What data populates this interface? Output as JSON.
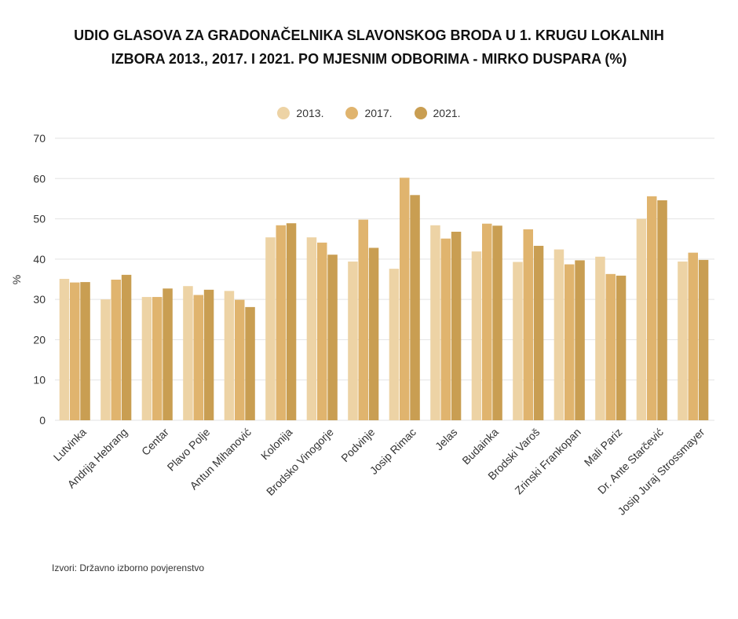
{
  "title_lines": [
    "UDIO GLASOVA ZA GRADONAČELNIKA SLAVONSKOG BRODA U 1. KRUGU LOKALNIH",
    "IZBORA 2013., 2017. I 2021. PO MJESNIM ODBORIMA - MIRKO DUSPARA (%)"
  ],
  "source": "Izvori: Državno izborno povjerenstvo",
  "colors": {
    "2013.": "#EDD3A5",
    "2017.": "#E0B46E",
    "2021.": "#C99E52",
    "grid": "#E3E3E3"
  },
  "chart_data": {
    "type": "bar",
    "ylabel": "%",
    "xlabel": "",
    "ylim": [
      0,
      70
    ],
    "yticks": [
      0,
      10,
      20,
      30,
      40,
      50,
      60,
      70
    ],
    "grid": true,
    "legend_position": "top-center",
    "categories": [
      "Lutvinka",
      "Andrija Hebrang",
      "Centar",
      "Plavo Polje",
      "Antun Mihanović",
      "Kolonija",
      "Brodsko Vinogorje",
      "Podvinje",
      "Josip Rimac",
      "Jelas",
      "Budainka",
      "Brodski Varoš",
      "Zrinski Frankopan",
      "Mali Pariz",
      "Dr. Ante Starčević",
      "Josip Juraj Strossmayer"
    ],
    "series": [
      {
        "name": "2013.",
        "values": [
          35.1,
          30.0,
          30.6,
          33.3,
          32.1,
          45.4,
          45.4,
          39.4,
          37.6,
          48.4,
          41.9,
          39.3,
          42.4,
          40.6,
          50.0,
          39.4
        ]
      },
      {
        "name": "2017.",
        "values": [
          34.2,
          34.9,
          30.6,
          31.1,
          29.9,
          48.4,
          44.1,
          49.8,
          60.2,
          45.1,
          48.8,
          47.4,
          38.7,
          36.3,
          55.6,
          41.6
        ]
      },
      {
        "name": "2021.",
        "values": [
          34.3,
          36.1,
          32.7,
          32.4,
          28.1,
          48.9,
          41.1,
          42.8,
          55.9,
          46.8,
          48.3,
          43.3,
          39.7,
          35.9,
          54.6,
          39.8
        ]
      }
    ]
  }
}
